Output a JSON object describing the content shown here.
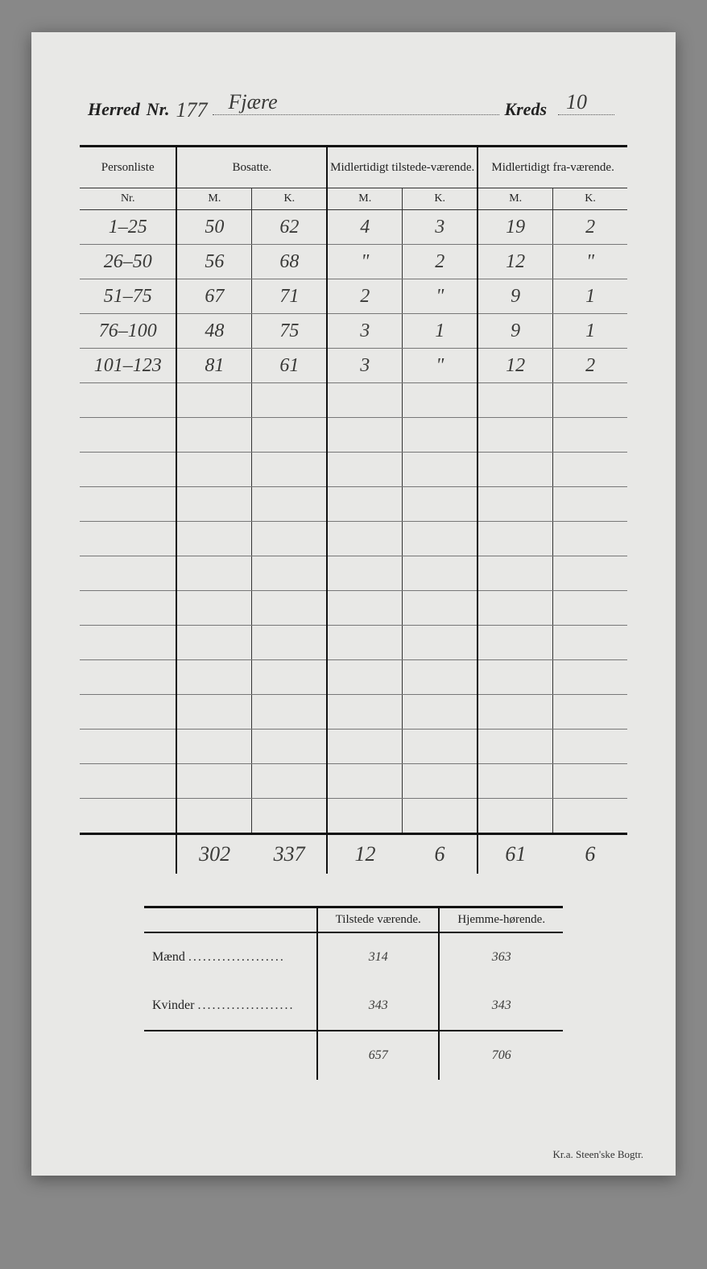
{
  "header": {
    "herred_label": "Herred",
    "nr_label": "Nr.",
    "herred_nr": "177",
    "herred_name": "Fjære",
    "kreds_label": "Kreds",
    "kreds_nr": "10"
  },
  "columns": {
    "personliste": "Personliste",
    "nr": "Nr.",
    "bosatte": "Bosatte.",
    "midl_tilstede": "Midlertidigt tilstede-værende.",
    "midl_fra": "Midlertidigt fra-værende.",
    "m": "M.",
    "k": "K."
  },
  "rows": [
    {
      "range": "1–25",
      "bm": "50",
      "bk": "62",
      "tm": "4",
      "tk": "3",
      "fm": "19",
      "fk": "2"
    },
    {
      "range": "26–50",
      "bm": "56",
      "bk": "68",
      "tm": "\"",
      "tk": "2",
      "fm": "12",
      "fk": "\""
    },
    {
      "range": "51–75",
      "bm": "67",
      "bk": "71",
      "tm": "2",
      "tk": "\"",
      "fm": "9",
      "fk": "1"
    },
    {
      "range": "76–100",
      "bm": "48",
      "bk": "75",
      "tm": "3",
      "tk": "1",
      "fm": "9",
      "fk": "1"
    },
    {
      "range": "101–123",
      "bm": "81",
      "bk": "61",
      "tm": "3",
      "tk": "\"",
      "fm": "12",
      "fk": "2"
    }
  ],
  "blank_rows": 13,
  "totals": {
    "bm": "302",
    "bk": "337",
    "tm": "12",
    "tk": "6",
    "fm": "61",
    "fk": "6"
  },
  "summary": {
    "tilstede_label": "Tilstede værende.",
    "hjemme_label": "Hjemme-hørende.",
    "maend_label": "Mænd",
    "kvinder_label": "Kvinder",
    "maend_t": "314",
    "maend_h": "363",
    "kvinder_t": "343",
    "kvinder_h": "343",
    "total_t": "657",
    "total_h": "706"
  },
  "imprint": "Kr.a.  Steen'ske Bogtr.",
  "style": {
    "page_bg": "#e8e8e6",
    "hand_color": "#3a3a38",
    "rule_color": "#111111",
    "line_color": "#777777"
  }
}
